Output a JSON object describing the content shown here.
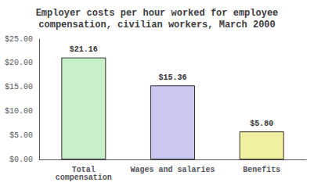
{
  "chart_data": {
    "type": "bar",
    "title": "Employer costs per hour worked for employee\ncompensation, civilian workers, March 2000",
    "categories": [
      "Total\ncompensation",
      "Wages and salaries",
      "Benefits"
    ],
    "values": [
      21.16,
      15.36,
      5.8
    ],
    "value_labels": [
      "$21.16",
      "$15.36",
      "$5.80"
    ],
    "colors": [
      "#c8f0c8",
      "#c8c8f0",
      "#f0f0a0"
    ],
    "ylim": [
      0,
      25
    ],
    "yticks": [
      {
        "value": 0,
        "label": "$0.00"
      },
      {
        "value": 5,
        "label": "$5.00"
      },
      {
        "value": 10,
        "label": "$10.00"
      },
      {
        "value": 15,
        "label": "$15.00"
      },
      {
        "value": 20,
        "label": "$20.00"
      },
      {
        "value": 25,
        "label": "$25.00"
      }
    ],
    "grid": false,
    "data_labels": true
  }
}
